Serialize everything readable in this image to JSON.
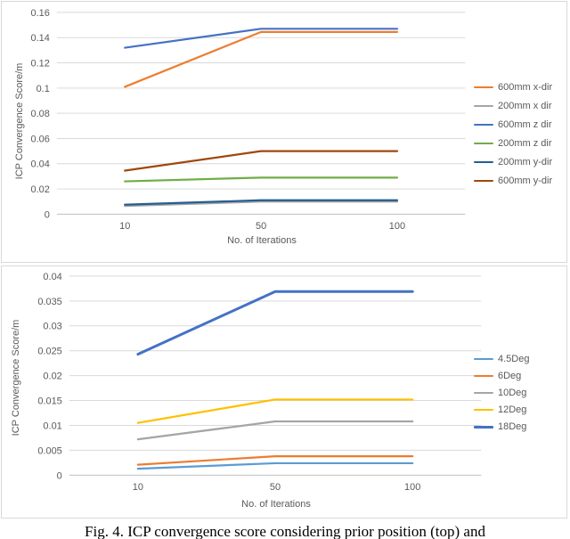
{
  "figure_caption": "Fig. 4. ICP convergence score considering prior position (top) and",
  "palette": {
    "grid_color": "#D9D9D9",
    "axis_color": "#BFBFBF",
    "text_color": "#595959",
    "border_color": "#D9D9D9"
  },
  "chart_data": [
    {
      "type": "line",
      "title": "",
      "xlabel": "No. of Iterations",
      "ylabel": "ICP Convergence Score/m",
      "categories": [
        10,
        50,
        100
      ],
      "ylim": [
        0,
        0.16
      ],
      "ytick_step": 0.02,
      "grid": true,
      "legend_position": "right",
      "series": [
        {
          "name": "600mm x-dir",
          "color": "#ED7D31",
          "line_width": 2.25,
          "values": [
            0.101,
            0.1445,
            0.1445
          ]
        },
        {
          "name": "200mm x dir",
          "color": "#A5A5A5",
          "line_width": 2.25,
          "values": [
            0.0065,
            0.01,
            0.01
          ]
        },
        {
          "name": "600mm z dir",
          "color": "#4472C4",
          "line_width": 2.25,
          "values": [
            0.132,
            0.147,
            0.147
          ]
        },
        {
          "name": "200mm z dir",
          "color": "#70AD47",
          "line_width": 2.25,
          "values": [
            0.026,
            0.029,
            0.029
          ]
        },
        {
          "name": "200mm y-dir",
          "color": "#255E91",
          "line_width": 2.25,
          "values": [
            0.0075,
            0.011,
            0.011
          ]
        },
        {
          "name": "600mm y-dir",
          "color": "#9E480E",
          "line_width": 2.25,
          "values": [
            0.0345,
            0.05,
            0.05
          ]
        }
      ]
    },
    {
      "type": "line",
      "title": "",
      "xlabel": "No. of Iterations",
      "ylabel": "ICP Convergence Score/m",
      "categories": [
        10,
        50,
        100
      ],
      "ylim": [
        0,
        0.04
      ],
      "ytick_step": 0.005,
      "grid": true,
      "legend_position": "right",
      "series": [
        {
          "name": "4.5Deg",
          "color": "#5B9BD5",
          "line_width": 2.25,
          "values": [
            0.0013,
            0.0024,
            0.0024
          ]
        },
        {
          "name": "6Deg",
          "color": "#ED7D31",
          "line_width": 2.25,
          "values": [
            0.0021,
            0.0038,
            0.0038
          ]
        },
        {
          "name": "10Deg",
          "color": "#A5A5A5",
          "line_width": 2.25,
          "values": [
            0.0072,
            0.0108,
            0.0108
          ]
        },
        {
          "name": "12Deg",
          "color": "#FFC000",
          "line_width": 2.25,
          "values": [
            0.0105,
            0.0152,
            0.0152
          ]
        },
        {
          "name": "18Deg",
          "color": "#4472C4",
          "line_width": 3,
          "values": [
            0.0243,
            0.0369,
            0.0369
          ]
        }
      ]
    }
  ]
}
